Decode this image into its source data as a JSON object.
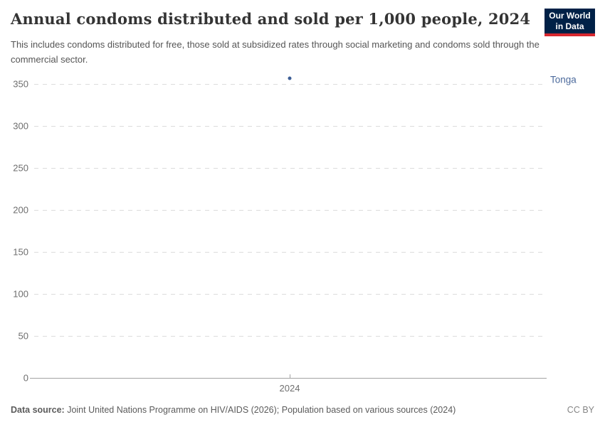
{
  "header": {
    "title": "Annual condoms distributed and sold per 1,000 people, 2024",
    "subtitle": "This includes condoms distributed for free, those sold at subsidized rates through social marketing and condoms sold through the commercial sector.",
    "logo": {
      "line1": "Our World",
      "line2": "in Data",
      "bg_color": "#002147",
      "accent_color": "#d7282f"
    }
  },
  "chart_data": {
    "type": "scatter",
    "title": "Annual condoms distributed and sold per 1,000 people, 2024",
    "xlabel": "",
    "ylabel": "",
    "x_ticks": [
      "2024"
    ],
    "y_ticks": [
      0,
      50,
      100,
      150,
      200,
      250,
      300,
      350
    ],
    "ylim": [
      0,
      360
    ],
    "grid": "horizontal-dashed",
    "gridline_color": "#dcdcdc",
    "axis_color": "#a3a3a3",
    "tick_label_color": "#6e6e6e",
    "legend_position": "entity-label-right",
    "series": [
      {
        "name": "Tonga",
        "x": [
          2024
        ],
        "values": [
          356
        ],
        "color": "#4c6a9c",
        "point_color": "#3d5e96"
      }
    ]
  },
  "footer": {
    "source_label": "Data source:",
    "source_text": " Joint United Nations Programme on HIV/AIDS (2026); Population based on various sources (2024)",
    "license": "CC BY"
  }
}
